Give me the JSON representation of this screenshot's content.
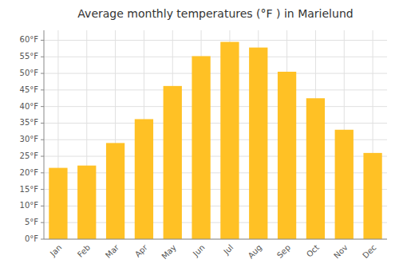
{
  "chart_data": {
    "type": "bar",
    "title": "Average monthly temperatures (°F ) in Marielund",
    "categories": [
      "Jan",
      "Feb",
      "Mar",
      "Apr",
      "May",
      "Jun",
      "Jul",
      "Aug",
      "Sep",
      "Oct",
      "Nov",
      "Dec"
    ],
    "values": [
      21.5,
      22.2,
      29.0,
      36.2,
      46.2,
      55.2,
      59.5,
      57.8,
      50.5,
      42.5,
      33.0,
      26.0
    ],
    "color": "#FFC125",
    "ylim": [
      0,
      63
    ],
    "yticks": [
      {
        "value": 0,
        "label": "0°F"
      },
      {
        "value": 5,
        "label": "5°F"
      },
      {
        "value": 10,
        "label": "10°F"
      },
      {
        "value": 15,
        "label": "15°F"
      },
      {
        "value": 20,
        "label": "20°F"
      },
      {
        "value": 25,
        "label": "25°F"
      },
      {
        "value": 30,
        "label": "30°F"
      },
      {
        "value": 35,
        "label": "35°F"
      },
      {
        "value": 40,
        "label": "40°F"
      },
      {
        "value": 45,
        "label": "45°F"
      },
      {
        "value": 50,
        "label": "50°F"
      },
      {
        "value": 55,
        "label": "55°F"
      },
      {
        "value": 60,
        "label": "60°F"
      }
    ],
    "grid": true
  }
}
